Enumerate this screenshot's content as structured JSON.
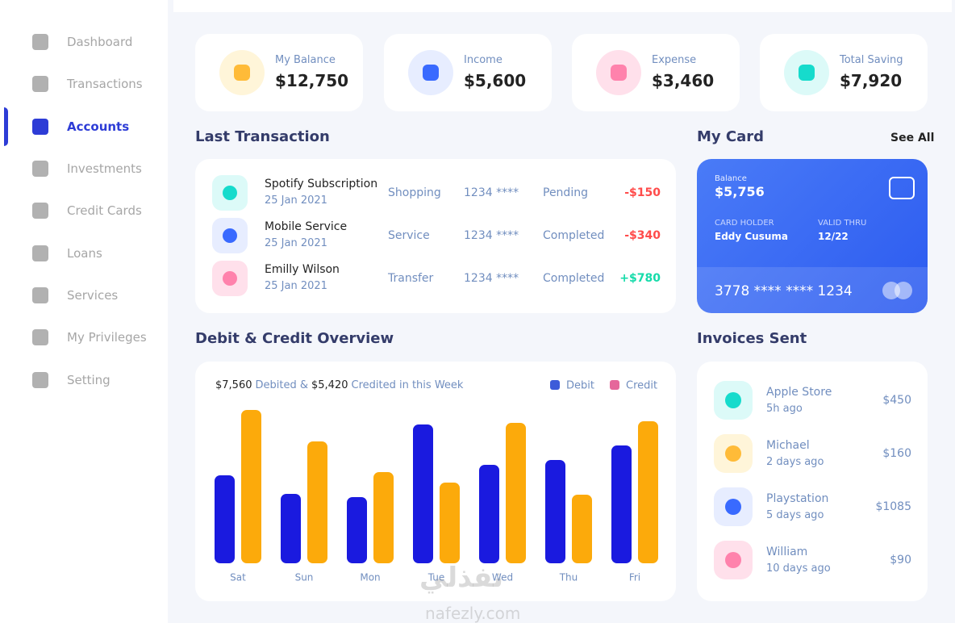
{
  "sidebar": {
    "items": [
      "Dashboard",
      "Transactions",
      "Accounts",
      "Investments",
      "Credit Cards",
      "Loans",
      "Services",
      "My Privileges",
      "Setting"
    ]
  },
  "stats": [
    {
      "label": "My Balance",
      "value": "$12,750"
    },
    {
      "label": "Income",
      "value": "$5,600"
    },
    {
      "label": "Expense",
      "value": "$3,460"
    },
    {
      "label": "Total Saving",
      "value": "$7,920"
    }
  ],
  "last_transaction": {
    "title": "Last Transaction",
    "rows": [
      {
        "name": "Spotify Subscription",
        "date": "25 Jan 2021",
        "category": "Shopping",
        "card": "1234 ****",
        "status": "Pending",
        "amount": "-$150"
      },
      {
        "name": "Mobile Service",
        "date": "25 Jan 2021",
        "category": "Service",
        "card": "1234 ****",
        "status": "Completed",
        "amount": "-$340"
      },
      {
        "name": "Emilly Wilson",
        "date": "25 Jan 2021",
        "category": "Transfer",
        "card": "1234 ****",
        "status": "Completed",
        "amount": "+$780"
      }
    ]
  },
  "my_card": {
    "title": "My Card",
    "link": "See All",
    "balance_label": "Balance",
    "balance": "$5,756",
    "holder_label": "CARD HOLDER",
    "holder": "Eddy Cusuma",
    "valid_label": "VALID THRU",
    "valid": "12/22",
    "number": "3778 **** **** 1234"
  },
  "overview": {
    "title": "Debit & Credit Overview",
    "debited": "$7,560",
    "debited_text": "Debited &",
    "credited": "$5,420",
    "credited_text": "Credited in this Week"
  },
  "chart_data": {
    "type": "bar",
    "categories": [
      "Sat",
      "Sun",
      "Mon",
      "Tue",
      "Wed",
      "Thu",
      "Fri"
    ],
    "series": [
      {
        "name": "Debit",
        "color": "#1a1adf",
        "legend_color": "#3d5bd9",
        "values": [
          109,
          86,
          82,
          172,
          122,
          128,
          146
        ]
      },
      {
        "name": "Credit",
        "color": "#fcaa0b",
        "legend_color": "#e5679b",
        "values": [
          190,
          151,
          113,
          100,
          174,
          85,
          176
        ]
      }
    ],
    "ylim": [
      0,
      200
    ]
  },
  "invoices": {
    "title": "Invoices Sent",
    "items": [
      {
        "name": "Apple Store",
        "time": "5h ago",
        "amount": "$450"
      },
      {
        "name": "Michael",
        "time": "2 days ago",
        "amount": "$160"
      },
      {
        "name": "Playstation",
        "time": "5 days ago",
        "amount": "$1085"
      },
      {
        "name": "William",
        "time": "10 days ago",
        "amount": "$90"
      }
    ]
  },
  "watermark": {
    "arabic": "نفذلي",
    "latin": "nafezly.com"
  }
}
